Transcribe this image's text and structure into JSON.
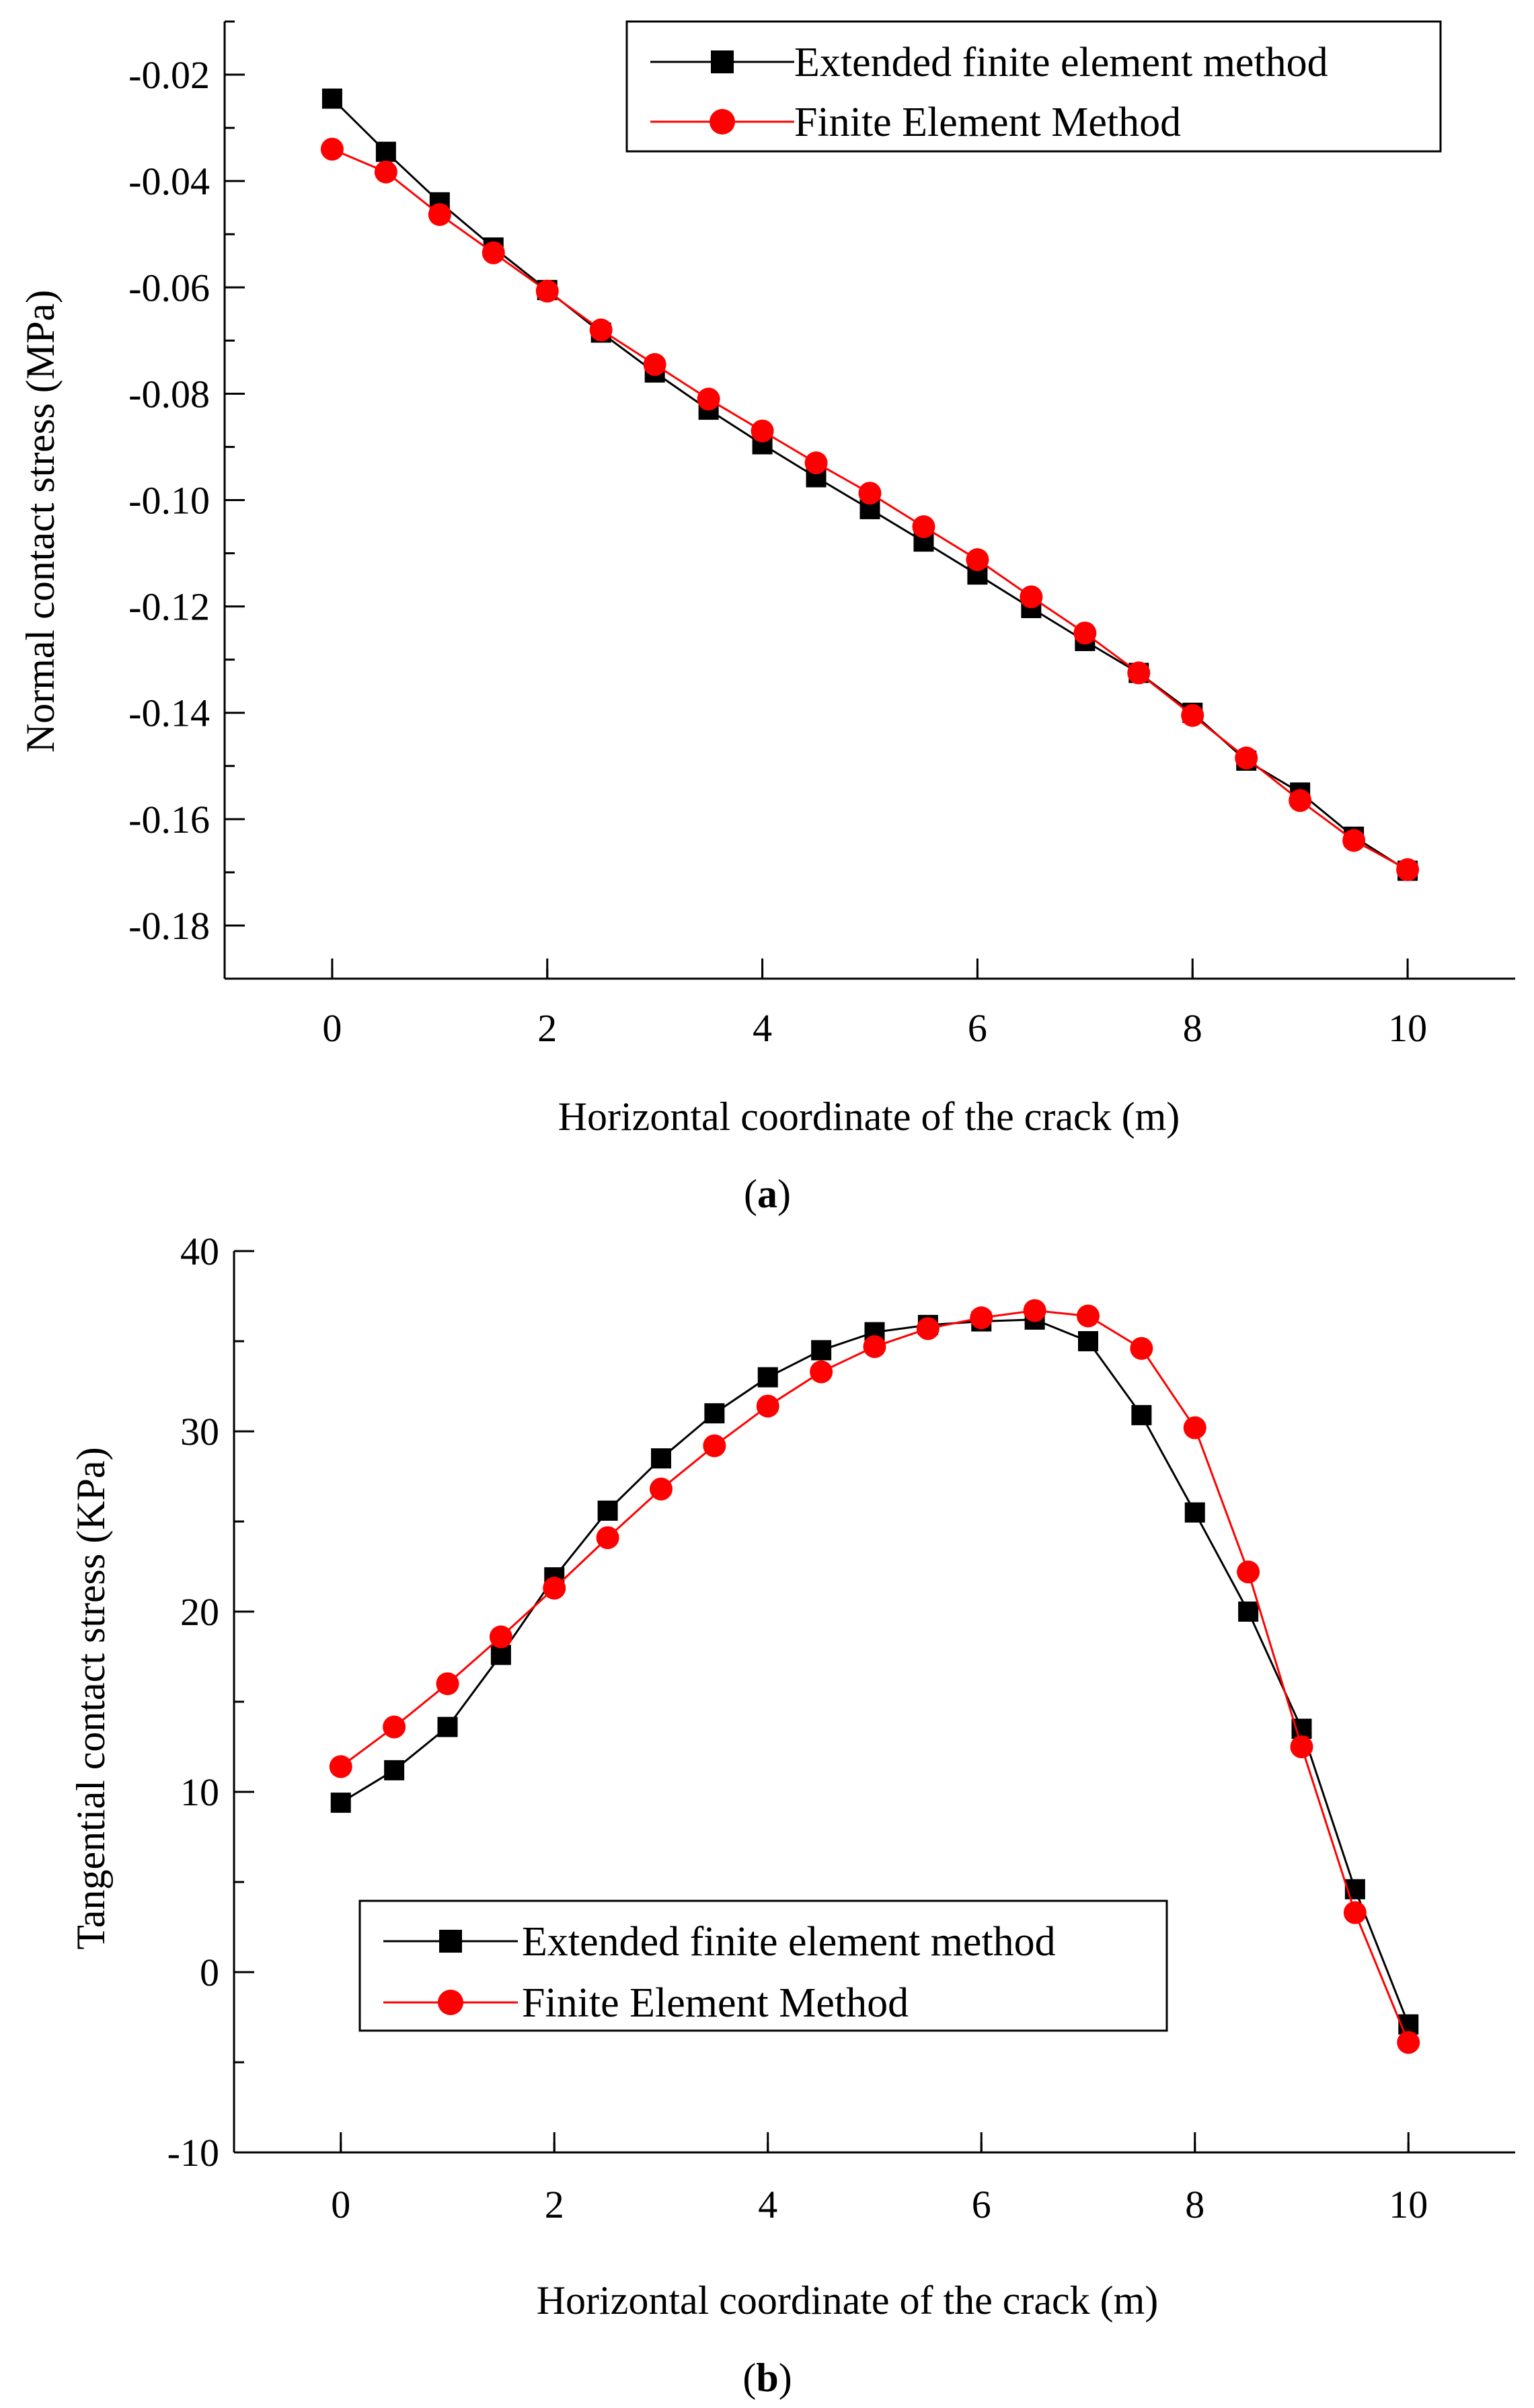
{
  "chart_data": [
    {
      "type": "line",
      "panel_label": "a",
      "title": "",
      "xlabel": "Horizontal coordinate of the crack (m)",
      "ylabel": "Normal contact stress (MPa)",
      "xlim": [
        -1,
        11
      ],
      "ylim": [
        -0.19,
        -0.01
      ],
      "xticks": [
        0,
        2,
        4,
        6,
        8,
        10
      ],
      "xtick_labels": [
        "0",
        "2",
        "4",
        "6",
        "8",
        "10"
      ],
      "yticks": [
        -0.02,
        -0.04,
        -0.06,
        -0.08,
        -0.1,
        -0.12,
        -0.14,
        -0.16,
        -0.18
      ],
      "ytick_labels": [
        "-0.02",
        "-0.04",
        "-0.06",
        "-0.08",
        "-0.10",
        "-0.12",
        "-0.14",
        "-0.16",
        "-0.18"
      ],
      "grid": false,
      "legend_position": "top-right",
      "x": [
        0,
        0.5,
        1,
        1.5,
        2,
        2.5,
        3,
        3.5,
        4,
        4.5,
        5,
        5.5,
        6,
        6.5,
        7,
        7.5,
        8,
        8.5,
        9,
        9.5,
        10
      ],
      "series": [
        {
          "name": "Extended finite element method",
          "color": "#000000",
          "marker": "square",
          "values": [
            -0.0245,
            -0.0345,
            -0.044,
            -0.0525,
            -0.0605,
            -0.0685,
            -0.076,
            -0.083,
            -0.0895,
            -0.0957,
            -0.1017,
            -0.1078,
            -0.114,
            -0.1203,
            -0.1265,
            -0.1325,
            -0.14,
            -0.149,
            -0.155,
            -0.1633,
            -0.1697
          ]
        },
        {
          "name": "Finite Element Method",
          "color": "#ff0000",
          "marker": "circle",
          "values": [
            -0.034,
            -0.0383,
            -0.0463,
            -0.0535,
            -0.0607,
            -0.068,
            -0.0745,
            -0.081,
            -0.087,
            -0.093,
            -0.0987,
            -0.105,
            -0.1112,
            -0.1182,
            -0.125,
            -0.1325,
            -0.1405,
            -0.1485,
            -0.1565,
            -0.164,
            -0.1695
          ]
        }
      ]
    },
    {
      "type": "line",
      "panel_label": "b",
      "title": "",
      "xlabel": "Horizontal coordinate of the crack (m)",
      "ylabel": "Tangential contact stress (KPa)",
      "xlim": [
        -1,
        11
      ],
      "ylim": [
        -10,
        40
      ],
      "xticks": [
        0,
        2,
        4,
        6,
        8,
        10
      ],
      "xtick_labels": [
        "0",
        "2",
        "4",
        "6",
        "8",
        "10"
      ],
      "yticks": [
        40,
        30,
        20,
        10,
        0,
        -10
      ],
      "ytick_labels": [
        "40",
        "30",
        "20",
        "10",
        "0",
        "-10"
      ],
      "grid": false,
      "legend_position": "bottom-left",
      "x": [
        0,
        0.5,
        1,
        1.5,
        2,
        2.5,
        3,
        3.5,
        4,
        4.5,
        5,
        5.5,
        6,
        6.5,
        7,
        7.5,
        8,
        8.5,
        9,
        9.5,
        10
      ],
      "series": [
        {
          "name": "Extended finite element method",
          "color": "#000000",
          "marker": "square",
          "values": [
            9.4,
            11.2,
            13.6,
            17.6,
            21.9,
            25.6,
            28.5,
            31.0,
            33.0,
            34.5,
            35.5,
            35.9,
            36.1,
            36.2,
            35.0,
            30.9,
            25.5,
            20.0,
            13.5,
            4.6,
            -2.9
          ]
        },
        {
          "name": "Finite Element Method",
          "color": "#ff0000",
          "marker": "circle",
          "values": [
            11.4,
            13.6,
            16.0,
            18.6,
            21.3,
            24.1,
            26.8,
            29.2,
            31.4,
            33.3,
            34.7,
            35.7,
            36.3,
            36.7,
            36.4,
            34.6,
            30.2,
            22.2,
            12.5,
            3.3,
            -3.9
          ]
        }
      ]
    }
  ]
}
